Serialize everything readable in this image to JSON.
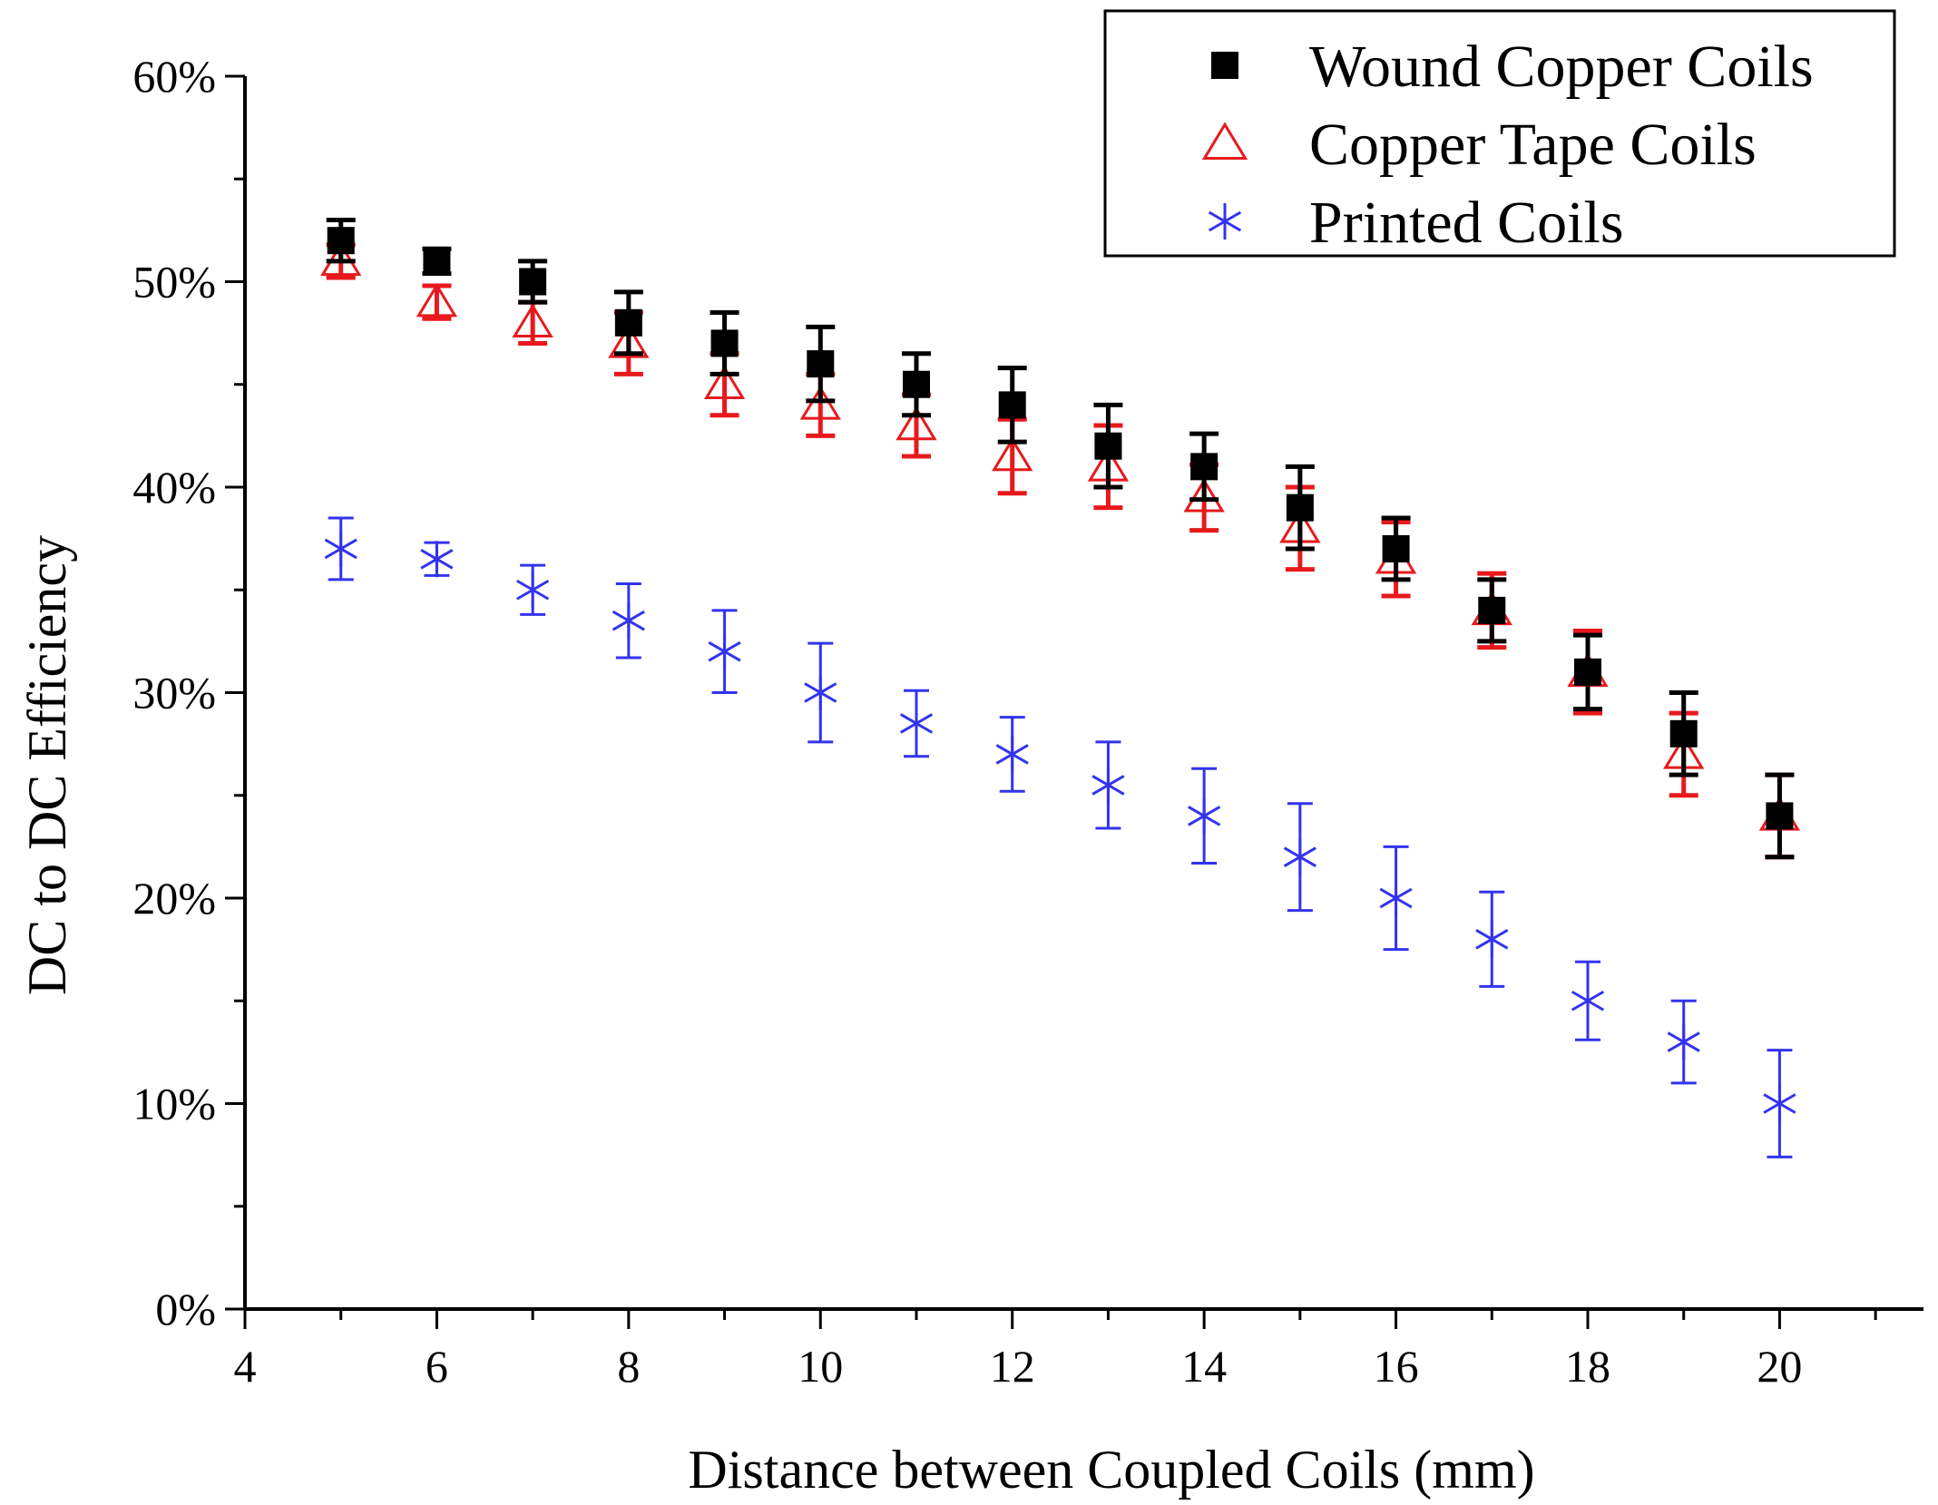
{
  "chart_data": {
    "type": "scatter",
    "title": "",
    "xlabel": "Distance between Coupled Coils (mm)",
    "ylabel": "DC to DC Efficiency",
    "xlim": [
      4,
      21.5
    ],
    "ylim": [
      0,
      60
    ],
    "x_ticks": [
      4,
      6,
      8,
      10,
      12,
      14,
      16,
      18,
      20
    ],
    "x_tick_labels": [
      "4",
      "6",
      "8",
      "10",
      "12",
      "14",
      "16",
      "18",
      "20"
    ],
    "y_ticks": [
      0,
      10,
      20,
      30,
      40,
      50,
      60
    ],
    "y_tick_labels": [
      "0%",
      "10%",
      "20%",
      "30%",
      "40%",
      "50%",
      "60%"
    ],
    "grid": false,
    "legend_position": "top-right",
    "x": [
      5,
      6,
      7,
      8,
      9,
      10,
      11,
      12,
      13,
      14,
      15,
      16,
      17,
      18,
      19,
      20
    ],
    "series": [
      {
        "name": "Wound Copper Coils",
        "marker": "square",
        "color": "#000000",
        "values": [
          52,
          51,
          50,
          48,
          47,
          46,
          45,
          44,
          42,
          41,
          39,
          37,
          34,
          31,
          28,
          24
        ],
        "errors": [
          1.0,
          0.6,
          1.0,
          1.5,
          1.5,
          1.8,
          1.5,
          1.8,
          2.0,
          1.6,
          2.0,
          1.5,
          1.5,
          1.8,
          2.0,
          2.0
        ]
      },
      {
        "name": "Copper Tape Coils",
        "marker": "triangle-open",
        "color": "#e8191c",
        "values": [
          51,
          49,
          48,
          47,
          45,
          44,
          43,
          41.5,
          41,
          39.5,
          38,
          36.5,
          34,
          31,
          27,
          24
        ],
        "errors": [
          0.8,
          0.8,
          1.0,
          1.5,
          1.5,
          1.5,
          1.5,
          1.8,
          2.0,
          1.6,
          2.0,
          1.8,
          1.8,
          2.0,
          2.0,
          2.0
        ]
      },
      {
        "name": "Printed Coils",
        "marker": "asterisk",
        "color": "#3333ee",
        "values": [
          37,
          36.5,
          35,
          33.5,
          32,
          30,
          28.5,
          27,
          25.5,
          24,
          22,
          20,
          18,
          15,
          13,
          10
        ],
        "errors": [
          1.5,
          0.8,
          1.2,
          1.8,
          2.0,
          2.4,
          1.6,
          1.8,
          2.1,
          2.3,
          2.6,
          2.5,
          2.3,
          1.9,
          2.0,
          2.6
        ]
      }
    ]
  }
}
